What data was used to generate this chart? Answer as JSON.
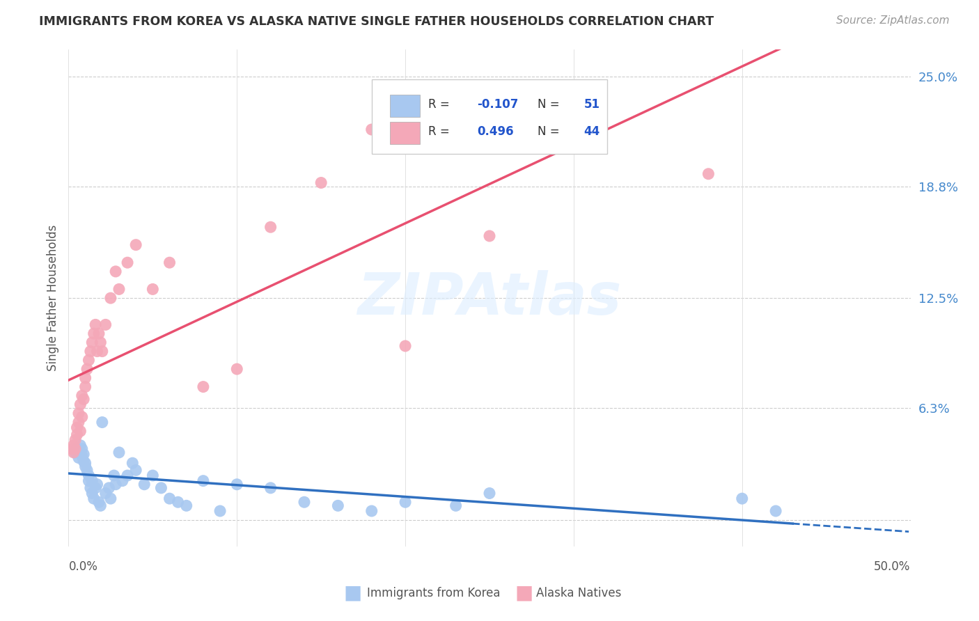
{
  "title": "IMMIGRANTS FROM KOREA VS ALASKA NATIVE SINGLE FATHER HOUSEHOLDS CORRELATION CHART",
  "source": "Source: ZipAtlas.com",
  "ylabel": "Single Father Households",
  "yticks": [
    0.0,
    0.063,
    0.125,
    0.188,
    0.25
  ],
  "ytick_labels": [
    "",
    "6.3%",
    "12.5%",
    "18.8%",
    "25.0%"
  ],
  "xlim": [
    0.0,
    0.5
  ],
  "ylim": [
    -0.015,
    0.265
  ],
  "blue_color": "#A8C8F0",
  "pink_color": "#F4A8B8",
  "blue_line_color": "#3070C0",
  "pink_line_color": "#E85070",
  "watermark": "ZIPAtlas",
  "blue_x": [
    0.004,
    0.005,
    0.006,
    0.007,
    0.007,
    0.008,
    0.008,
    0.009,
    0.009,
    0.01,
    0.01,
    0.011,
    0.012,
    0.012,
    0.013,
    0.014,
    0.014,
    0.015,
    0.016,
    0.017,
    0.018,
    0.019,
    0.02,
    0.022,
    0.024,
    0.025,
    0.027,
    0.028,
    0.03,
    0.032,
    0.035,
    0.038,
    0.04,
    0.045,
    0.05,
    0.055,
    0.06,
    0.065,
    0.07,
    0.08,
    0.09,
    0.1,
    0.12,
    0.14,
    0.16,
    0.18,
    0.2,
    0.23,
    0.25,
    0.4,
    0.42
  ],
  "blue_y": [
    0.038,
    0.04,
    0.035,
    0.042,
    0.038,
    0.036,
    0.04,
    0.037,
    0.033,
    0.03,
    0.032,
    0.028,
    0.025,
    0.022,
    0.018,
    0.022,
    0.015,
    0.012,
    0.018,
    0.02,
    0.01,
    0.008,
    0.055,
    0.015,
    0.018,
    0.012,
    0.025,
    0.02,
    0.038,
    0.022,
    0.025,
    0.032,
    0.028,
    0.02,
    0.025,
    0.018,
    0.012,
    0.01,
    0.008,
    0.022,
    0.005,
    0.02,
    0.018,
    0.01,
    0.008,
    0.005,
    0.01,
    0.008,
    0.015,
    0.012,
    0.005
  ],
  "pink_x": [
    0.002,
    0.003,
    0.003,
    0.004,
    0.004,
    0.005,
    0.005,
    0.006,
    0.006,
    0.007,
    0.007,
    0.008,
    0.008,
    0.009,
    0.01,
    0.01,
    0.011,
    0.012,
    0.013,
    0.014,
    0.015,
    0.016,
    0.017,
    0.018,
    0.019,
    0.02,
    0.022,
    0.025,
    0.028,
    0.03,
    0.035,
    0.04,
    0.05,
    0.06,
    0.08,
    0.1,
    0.12,
    0.15,
    0.18,
    0.2,
    0.22,
    0.25,
    0.3,
    0.38
  ],
  "pink_y": [
    0.04,
    0.042,
    0.038,
    0.045,
    0.04,
    0.048,
    0.052,
    0.055,
    0.06,
    0.05,
    0.065,
    0.058,
    0.07,
    0.068,
    0.075,
    0.08,
    0.085,
    0.09,
    0.095,
    0.1,
    0.105,
    0.11,
    0.095,
    0.105,
    0.1,
    0.095,
    0.11,
    0.125,
    0.14,
    0.13,
    0.145,
    0.155,
    0.13,
    0.145,
    0.075,
    0.085,
    0.165,
    0.19,
    0.22,
    0.098,
    0.215,
    0.16,
    0.23,
    0.195
  ]
}
